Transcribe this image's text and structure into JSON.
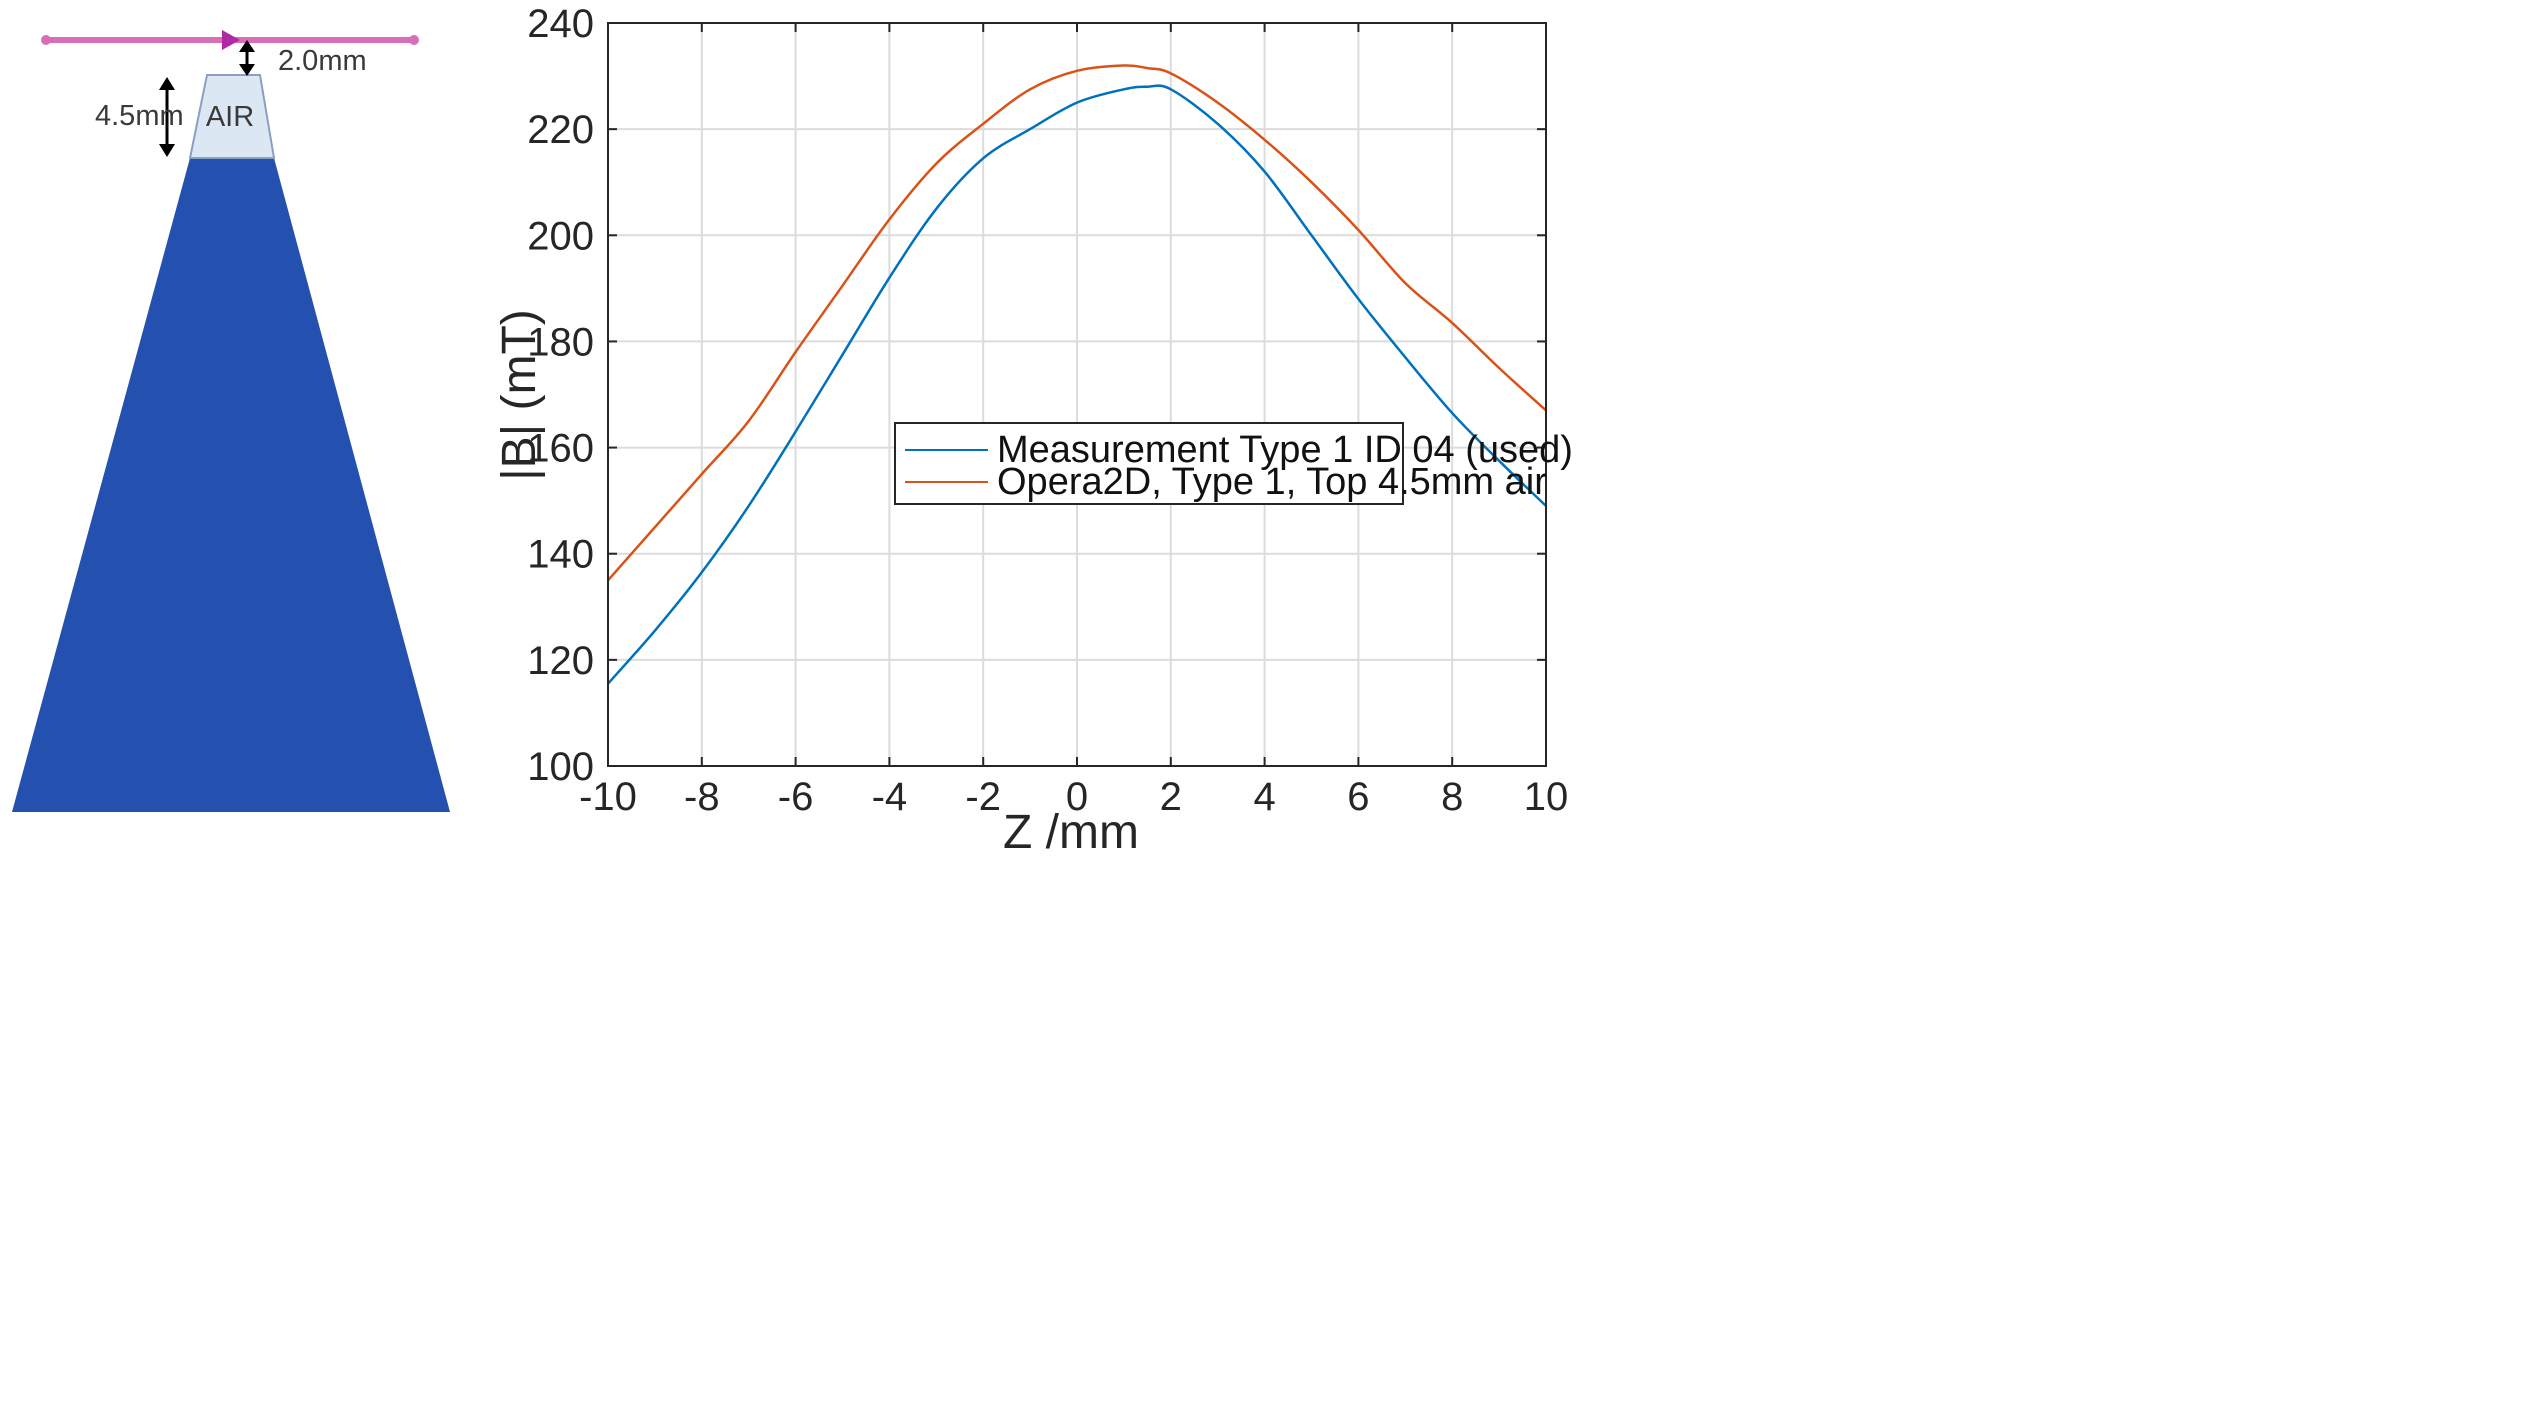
{
  "diagram": {
    "air_label": "AIR",
    "top_gap_label": "2.0mm",
    "air_height_label": "4.5mm",
    "colors": {
      "pole": "#2450b0",
      "air": "#dbe8f4",
      "line": "#d86eb8"
    }
  },
  "chart_data": {
    "type": "line",
    "title": "",
    "xlabel": "Z /mm",
    "ylabel": "|B| (mT)",
    "xlim": [
      -10,
      10
    ],
    "ylim": [
      100,
      240
    ],
    "xticks": [
      -10,
      -8,
      -6,
      -4,
      -2,
      0,
      2,
      4,
      6,
      8,
      10
    ],
    "yticks": [
      100,
      120,
      140,
      160,
      180,
      200,
      220,
      240
    ],
    "grid": true,
    "legend_position": "center-right",
    "x": [
      -10,
      -9,
      -8,
      -7,
      -6,
      -5,
      -4,
      -3,
      -2,
      -1,
      0,
      1,
      1.5,
      2,
      3,
      4,
      5,
      6,
      7,
      8,
      9,
      10
    ],
    "series": [
      {
        "name": "Measurement Type 1 ID 04 (used)",
        "color": "#0072bd",
        "values": [
          115.5,
          125.5,
          136.5,
          149,
          163,
          177.5,
          192,
          205,
          214.5,
          220,
          225,
          227.5,
          228,
          227.5,
          221,
          212,
          200,
          188,
          177,
          166.5,
          157.5,
          149
        ]
      },
      {
        "name": "Opera2D, Type 1, Top 4.5mm air",
        "color": "#d95319",
        "values": [
          135,
          145,
          155,
          165,
          178,
          190.5,
          203,
          213.5,
          221,
          227.5,
          231,
          232,
          231.5,
          230.5,
          225,
          218,
          210,
          201,
          191,
          183.5,
          175,
          167
        ]
      }
    ]
  }
}
